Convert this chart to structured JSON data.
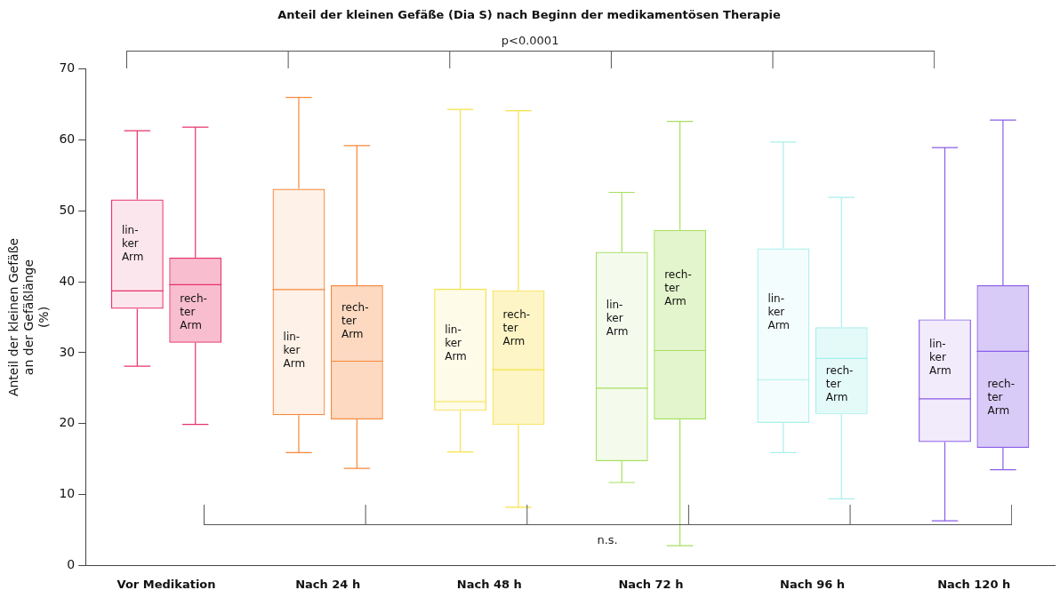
{
  "chart_data": {
    "type": "box",
    "title": "Anteil der kleinen Gefäße (Dia S) nach Beginn der medikamentösen Therapie",
    "ylabel": "Anteil der kleinen Gefäße\nan der Gefäßlänge\n(%)",
    "categories": [
      "Vor Medikation",
      "Nach 24 h",
      "Nach 48 h",
      "Nach 72 h",
      "Nach 96 h",
      "Nach 120 h"
    ],
    "ylim": [
      0,
      70
    ],
    "yticks": [
      0,
      10,
      20,
      30,
      40,
      50,
      60,
      70
    ],
    "annotations": [
      "p<0.0001",
      "n.s."
    ],
    "series": [
      {
        "name": "lin- ker Arm",
        "colors": [
          "#e8336a",
          "#f7883a",
          "#f8e14a",
          "#a8e060",
          "#a8f0ec",
          "#8a5ee8"
        ],
        "boxes": [
          {
            "low": 28.1,
            "q1": 36.2,
            "median": 38.7,
            "q3": 51.6,
            "high": 61.3
          },
          {
            "low": 15.9,
            "q1": 21.2,
            "median": 38.9,
            "q3": 53.1,
            "high": 66
          },
          {
            "low": 16.0,
            "q1": 21.8,
            "median": 23.1,
            "q3": 39.0,
            "high": 64.3
          },
          {
            "low": 11.7,
            "q1": 14.7,
            "median": 25.0,
            "q3": 44.2,
            "high": 52.6
          },
          {
            "low": 15.9,
            "q1": 20.1,
            "median": 26.2,
            "q3": 44.7,
            "high": 59.7
          },
          {
            "low": 6.3,
            "q1": 17.4,
            "median": 23.5,
            "q3": 34.7,
            "high": 58.9
          }
        ]
      },
      {
        "name": "rech- ter Arm",
        "colors": [
          "#e8336a",
          "#f7883a",
          "#f8e14a",
          "#a8e060",
          "#a8f0ec",
          "#8a5ee8"
        ],
        "boxes": [
          {
            "low": 19.9,
            "q1": 31.4,
            "median": 39.6,
            "q3": 43.4,
            "high": 61.8
          },
          {
            "low": 13.7,
            "q1": 20.6,
            "median": 28.8,
            "q3": 39.5,
            "high": 59.2
          },
          {
            "low": 8.2,
            "q1": 19.8,
            "median": 27.6,
            "q3": 38.8,
            "high": 64.1
          },
          {
            "low": 2.8,
            "q1": 20.6,
            "median": 30.3,
            "q3": 47.3,
            "high": 62.6
          },
          {
            "low": 9.4,
            "q1": 21.3,
            "median": 29.2,
            "q3": 33.6,
            "high": 51.9
          },
          {
            "low": 13.5,
            "q1": 16.6,
            "median": 30.2,
            "q3": 39.5,
            "high": 62.8
          }
        ]
      }
    ]
  }
}
